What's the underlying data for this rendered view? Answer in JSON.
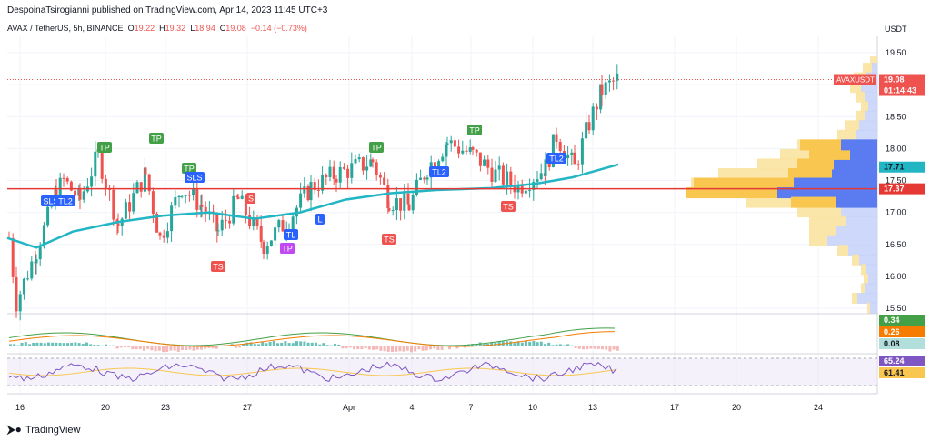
{
  "header": {
    "publisher": "DespoinaTsirogianni published on TradingView.com, Apr 14, 2023 11:45 UTC+3"
  },
  "symbol": {
    "name": "AVAX / TetherUS, 5h, BINANCE",
    "open_label": "O",
    "open": "19.22",
    "high_label": "H",
    "high": "19.32",
    "low_label": "L",
    "low": "18.94",
    "close_label": "C",
    "close": "19.08",
    "change": "−0.14 (−0.73%)"
  },
  "price_axis": {
    "currency": "USDT",
    "ticks": [
      "19.50",
      "19.00",
      "18.50",
      "18.00",
      "17.50",
      "17.00",
      "16.50",
      "16.00",
      "15.50"
    ]
  },
  "price_tags": {
    "ticker": "AVAXUSDT",
    "last_price": "19.08",
    "countdown": "01:14:43",
    "ma_value": "17.71",
    "line_value": "17.37"
  },
  "indicator_tags": {
    "osc_a": "0.34",
    "osc_b": "0.26",
    "osc_c": "0.08",
    "rsi_a": "65.24",
    "rsi_b": "61.41"
  },
  "time_axis": [
    "16",
    "20",
    "23",
    "27",
    "Apr",
    "4",
    "7",
    "10",
    "13",
    "17",
    "20",
    "24"
  ],
  "signals": [
    "TP",
    "TP",
    "TP",
    "TP",
    "TP",
    "TP",
    "SLS",
    "TL2",
    "SLS",
    "S",
    "TS",
    "TL",
    "TP",
    "L",
    "TS",
    "TL2",
    "TS",
    "TL2"
  ],
  "footer": {
    "brand": "TradingView",
    "logo_icon": "tradingview-logo-icon"
  },
  "colors": {
    "up": "#26a69a",
    "down": "#ef5350",
    "ma": "#22b5c4",
    "red_line": "#e53935",
    "vp_up": "#5b7cf0",
    "vp_down": "#f9c74f",
    "rsi": "#7e57c2"
  }
}
